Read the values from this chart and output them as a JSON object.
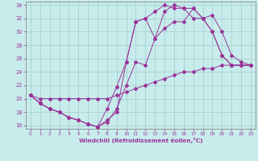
{
  "xlabel": "Windchill (Refroidissement éolien,°C)",
  "bg_color": "#c8ecec",
  "grid_color": "#a0cccc",
  "line_color": "#993399",
  "xlim": [
    -0.5,
    23.5
  ],
  "ylim": [
    15.5,
    34.5
  ],
  "xticks": [
    0,
    1,
    2,
    3,
    4,
    5,
    6,
    7,
    8,
    9,
    10,
    11,
    12,
    13,
    14,
    15,
    16,
    17,
    18,
    19,
    20,
    21,
    22,
    23
  ],
  "yticks": [
    16,
    18,
    20,
    22,
    24,
    26,
    28,
    30,
    32,
    34
  ],
  "line1_x": [
    0,
    1,
    2,
    3,
    4,
    5,
    6,
    7,
    8,
    9,
    10,
    11,
    12,
    13,
    14,
    15,
    16,
    17,
    18,
    19,
    20,
    21,
    22,
    23
  ],
  "line1_y": [
    20.5,
    19.3,
    18.5,
    18.0,
    17.2,
    16.8,
    16.2,
    15.8,
    16.5,
    18.5,
    22.0,
    25.5,
    25.0,
    29.0,
    30.5,
    31.5,
    31.5,
    33.5,
    32.0,
    30.0,
    26.5,
    25.0,
    25.0,
    25.0
  ],
  "line2_x": [
    0,
    1,
    2,
    3,
    4,
    5,
    6,
    7,
    8,
    9,
    10,
    11,
    12,
    13,
    14,
    15,
    16,
    17,
    18,
    19,
    20,
    21,
    22,
    23
  ],
  "line2_y": [
    20.5,
    19.3,
    18.5,
    18.0,
    17.2,
    16.8,
    16.2,
    15.8,
    18.5,
    21.8,
    25.5,
    31.5,
    32.0,
    33.0,
    34.0,
    33.5,
    33.5,
    32.0,
    32.0,
    32.5,
    30.0,
    26.5,
    25.5,
    25.0
  ],
  "line3_x": [
    0,
    1,
    2,
    3,
    4,
    5,
    6,
    7,
    8,
    9,
    10,
    11,
    12,
    13,
    14,
    15,
    16,
    17,
    18,
    19,
    20,
    21,
    22,
    23
  ],
  "line3_y": [
    20.5,
    20.0,
    20.0,
    20.0,
    20.0,
    20.0,
    20.0,
    20.0,
    20.0,
    20.5,
    21.0,
    21.5,
    22.0,
    22.5,
    23.0,
    23.5,
    24.0,
    24.0,
    24.5,
    24.5,
    25.0,
    25.0,
    25.0,
    25.0
  ],
  "line4_x": [
    0,
    1,
    2,
    3,
    4,
    5,
    6,
    7,
    8,
    9,
    10,
    11,
    12,
    13,
    14,
    15,
    16,
    17,
    18,
    19,
    20,
    21,
    22,
    23
  ],
  "line4_y": [
    20.5,
    19.3,
    18.5,
    18.0,
    17.2,
    16.8,
    16.2,
    15.8,
    16.8,
    18.0,
    25.5,
    31.5,
    32.0,
    29.0,
    33.0,
    34.0,
    33.5,
    33.5,
    32.0,
    30.0,
    26.5,
    25.0,
    25.0,
    25.0
  ]
}
